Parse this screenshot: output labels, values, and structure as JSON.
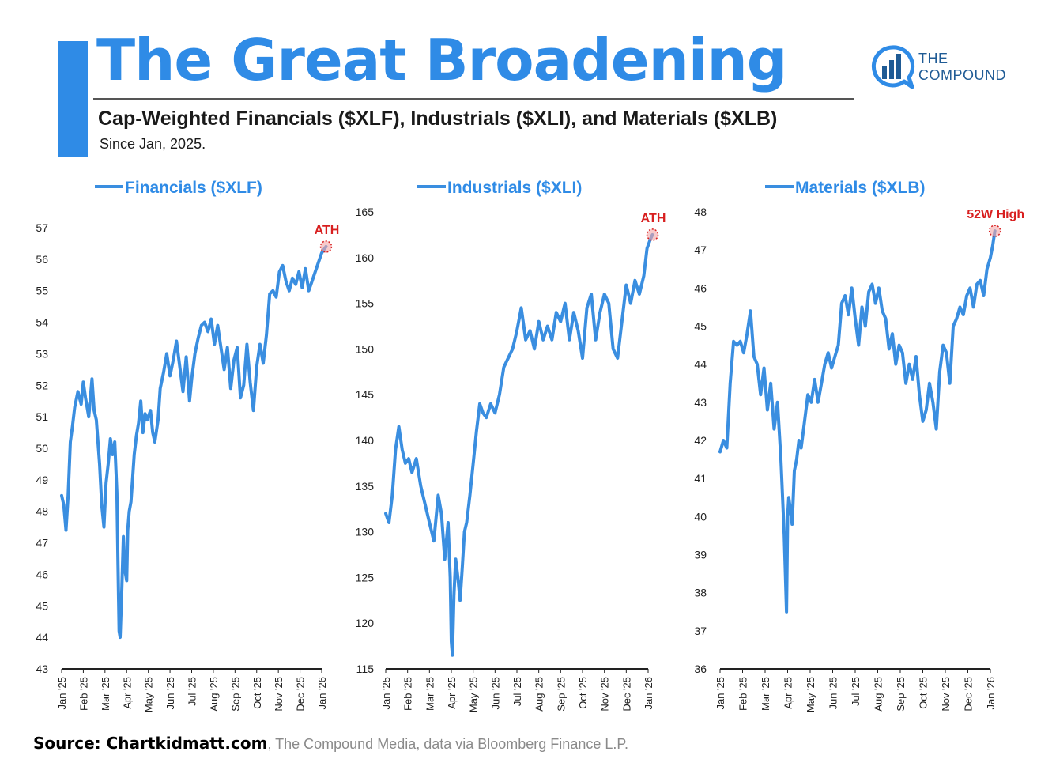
{
  "header": {
    "title": "The Great Broadening",
    "subtitle": "Cap-Weighted Financials ($XLF), Industrials ($XLI), and Materials ($XLB)",
    "since": "Since Jan, 2025."
  },
  "logo": {
    "line1": "THE",
    "line2": "COMPOUND"
  },
  "footer": {
    "source_label": "Source: Chartkidmatt.com",
    "source_rest": ", The Compound Media, data via Bloomberg Finance L.P."
  },
  "colors": {
    "accent": "#2F8BE6",
    "line": "#3A8EE0",
    "annotation": "#D81F1F",
    "axis": "#222222"
  },
  "chart_data": [
    {
      "type": "line",
      "title": "Financials ($XLF)",
      "legend": "Financials ($XLF)",
      "ylim": [
        43,
        57
      ],
      "yticks": [
        43,
        44,
        45,
        46,
        47,
        48,
        49,
        50,
        51,
        52,
        53,
        54,
        55,
        56,
        57
      ],
      "xticks": [
        "Jan '25",
        "Feb '25",
        "Mar '25",
        "Apr '25",
        "May '25",
        "Jun '25",
        "Jul '25",
        "Aug '25",
        "Sep '25",
        "Oct '25",
        "Nov '25",
        "Dec '25",
        "Jan '26"
      ],
      "x": [
        0,
        0.1,
        0.2,
        0.3,
        0.4,
        0.5,
        0.6,
        0.75,
        0.9,
        1.0,
        1.1,
        1.25,
        1.4,
        1.5,
        1.6,
        1.75,
        1.85,
        1.95,
        2.05,
        2.15,
        2.25,
        2.35,
        2.45,
        2.55,
        2.6,
        2.65,
        2.7,
        2.78,
        2.85,
        2.93,
        3.0,
        3.05,
        3.12,
        3.2,
        3.28,
        3.35,
        3.45,
        3.55,
        3.65,
        3.75,
        3.85,
        3.95,
        4.1,
        4.2,
        4.3,
        4.45,
        4.55,
        4.7,
        4.85,
        5.0,
        5.15,
        5.3,
        5.45,
        5.6,
        5.75,
        5.9,
        6.0,
        6.15,
        6.3,
        6.45,
        6.6,
        6.75,
        6.9,
        7.05,
        7.2,
        7.35,
        7.5,
        7.65,
        7.8,
        7.95,
        8.1,
        8.25,
        8.4,
        8.55,
        8.7,
        8.85,
        9.0,
        9.15,
        9.3,
        9.45,
        9.6,
        9.75,
        9.9,
        10.05,
        10.2,
        10.35,
        10.5,
        10.65,
        10.8,
        10.95,
        11.1,
        11.25,
        11.4,
        11.55,
        11.7,
        11.85,
        12.0,
        12.1,
        12.2
      ],
      "values": [
        48.5,
        48.2,
        47.4,
        48.5,
        50.2,
        50.7,
        51.3,
        51.8,
        51.4,
        52.1,
        51.6,
        51.0,
        52.2,
        51.2,
        50.9,
        49.5,
        48.2,
        47.5,
        48.9,
        49.5,
        50.3,
        49.8,
        50.2,
        48.6,
        46.3,
        44.2,
        44.0,
        45.6,
        47.2,
        46.1,
        45.8,
        47.4,
        48.0,
        48.3,
        49.1,
        49.8,
        50.4,
        50.8,
        51.5,
        50.5,
        51.1,
        50.9,
        51.2,
        50.5,
        50.2,
        50.9,
        51.9,
        52.4,
        53.0,
        52.3,
        52.8,
        53.4,
        52.6,
        51.8,
        52.9,
        51.5,
        52.2,
        53.0,
        53.5,
        53.9,
        54.0,
        53.7,
        54.1,
        53.3,
        53.9,
        53.2,
        52.5,
        53.2,
        51.9,
        52.8,
        53.2,
        51.6,
        52.0,
        53.3,
        52.1,
        51.2,
        52.6,
        53.3,
        52.7,
        53.6,
        54.9,
        55.0,
        54.8,
        55.6,
        55.8,
        55.3,
        55.0,
        55.4,
        55.2,
        55.6,
        55.1,
        55.7,
        55.0,
        55.3,
        55.6,
        55.9,
        56.2,
        56.3,
        56.4
      ],
      "annotation": {
        "label": "ATH",
        "x": 12.2,
        "y": 56.4
      }
    },
    {
      "type": "line",
      "title": "Industrials ($XLI)",
      "legend": "Industrials ($XLI)",
      "ylim": [
        115,
        165
      ],
      "yticks": [
        115,
        120,
        125,
        130,
        135,
        140,
        145,
        150,
        155,
        160,
        165
      ],
      "xticks": [
        "Jan '25",
        "Feb '25",
        "Mar '25",
        "Apr '25",
        "May '25",
        "Jun '25",
        "Jul '25",
        "Aug '25",
        "Sep '25",
        "Oct '25",
        "Nov '25",
        "Dec '25",
        "Jan '26"
      ],
      "x": [
        0,
        0.15,
        0.3,
        0.45,
        0.6,
        0.75,
        0.9,
        1.05,
        1.2,
        1.4,
        1.6,
        1.8,
        2.0,
        2.2,
        2.4,
        2.55,
        2.7,
        2.85,
        2.95,
        3.0,
        3.05,
        3.12,
        3.2,
        3.3,
        3.4,
        3.5,
        3.6,
        3.7,
        3.85,
        4.0,
        4.15,
        4.3,
        4.45,
        4.6,
        4.8,
        5.0,
        5.2,
        5.4,
        5.6,
        5.8,
        6.0,
        6.2,
        6.4,
        6.6,
        6.8,
        7.0,
        7.2,
        7.4,
        7.6,
        7.8,
        8.0,
        8.2,
        8.4,
        8.6,
        8.8,
        9.0,
        9.2,
        9.4,
        9.6,
        9.8,
        10.0,
        10.2,
        10.4,
        10.6,
        10.8,
        11.0,
        11.2,
        11.4,
        11.6,
        11.8,
        11.95,
        12.1,
        12.2
      ],
      "values": [
        132,
        131,
        134,
        139,
        141.5,
        139,
        137.5,
        138,
        136.5,
        138,
        135,
        133,
        131,
        129,
        134,
        132,
        127,
        131,
        125,
        118,
        116.5,
        123,
        127,
        125,
        122.5,
        126,
        130,
        131,
        134,
        137.5,
        141,
        144,
        143,
        142.5,
        144,
        143,
        145,
        148,
        149,
        150,
        152,
        154.5,
        151,
        152,
        150,
        153,
        151,
        152.5,
        151,
        154,
        153,
        155,
        151,
        154,
        152,
        149,
        154.5,
        156,
        151,
        154,
        156,
        155,
        150,
        149,
        153,
        157,
        155,
        157.5,
        156,
        158,
        161,
        162,
        162.5
      ],
      "annotation": {
        "label": "ATH",
        "x": 12.2,
        "y": 162.5
      }
    },
    {
      "type": "line",
      "title": "Materials ($XLB)",
      "legend": "Materials ($XLB)",
      "ylim": [
        36,
        48
      ],
      "yticks": [
        36,
        37,
        38,
        39,
        40,
        41,
        42,
        43,
        44,
        45,
        46,
        47,
        48
      ],
      "xticks": [
        "Jan '25",
        "Feb '25",
        "Mar '25",
        "Apr '25",
        "May '25",
        "Jun '25",
        "Jul '25",
        "Aug '25",
        "Sep '25",
        "Oct '25",
        "Nov '25",
        "Dec '25",
        "Jan '26"
      ],
      "x": [
        0,
        0.15,
        0.3,
        0.45,
        0.6,
        0.75,
        0.9,
        1.05,
        1.2,
        1.35,
        1.5,
        1.65,
        1.8,
        1.95,
        2.1,
        2.25,
        2.4,
        2.55,
        2.7,
        2.85,
        2.95,
        3.0,
        3.05,
        3.12,
        3.2,
        3.3,
        3.4,
        3.5,
        3.6,
        3.75,
        3.9,
        4.05,
        4.2,
        4.35,
        4.5,
        4.65,
        4.8,
        4.95,
        5.1,
        5.25,
        5.4,
        5.55,
        5.7,
        5.85,
        6.0,
        6.15,
        6.3,
        6.45,
        6.6,
        6.75,
        6.9,
        7.05,
        7.2,
        7.35,
        7.5,
        7.65,
        7.8,
        7.95,
        8.1,
        8.25,
        8.4,
        8.55,
        8.7,
        8.85,
        9.0,
        9.15,
        9.3,
        9.45,
        9.6,
        9.75,
        9.9,
        10.05,
        10.2,
        10.35,
        10.5,
        10.65,
        10.8,
        10.95,
        11.1,
        11.25,
        11.4,
        11.55,
        11.7,
        11.85,
        12.0,
        12.1,
        12.2
      ],
      "values": [
        41.7,
        42.0,
        41.8,
        43.5,
        44.6,
        44.5,
        44.6,
        44.3,
        44.8,
        45.4,
        44.2,
        44.0,
        43.2,
        43.9,
        42.8,
        43.5,
        42.3,
        43.0,
        41.5,
        39.5,
        37.5,
        40.0,
        40.5,
        40.2,
        39.8,
        41.2,
        41.5,
        42.0,
        41.8,
        42.5,
        43.2,
        43.0,
        43.6,
        43.0,
        43.5,
        44.0,
        44.3,
        43.9,
        44.2,
        44.5,
        45.6,
        45.8,
        45.3,
        46.0,
        45.2,
        44.5,
        45.5,
        45.0,
        45.9,
        46.1,
        45.6,
        46.0,
        45.4,
        45.2,
        44.4,
        44.8,
        44.0,
        44.5,
        44.3,
        43.5,
        44.0,
        43.6,
        44.2,
        43.2,
        42.5,
        42.8,
        43.5,
        43.0,
        42.3,
        43.8,
        44.5,
        44.3,
        43.5,
        45.0,
        45.2,
        45.5,
        45.3,
        45.8,
        46.0,
        45.5,
        46.1,
        46.2,
        45.8,
        46.5,
        46.8,
        47.1,
        47.5
      ],
      "annotation": {
        "label": "52W High",
        "x": 12.2,
        "y": 47.5
      }
    }
  ]
}
